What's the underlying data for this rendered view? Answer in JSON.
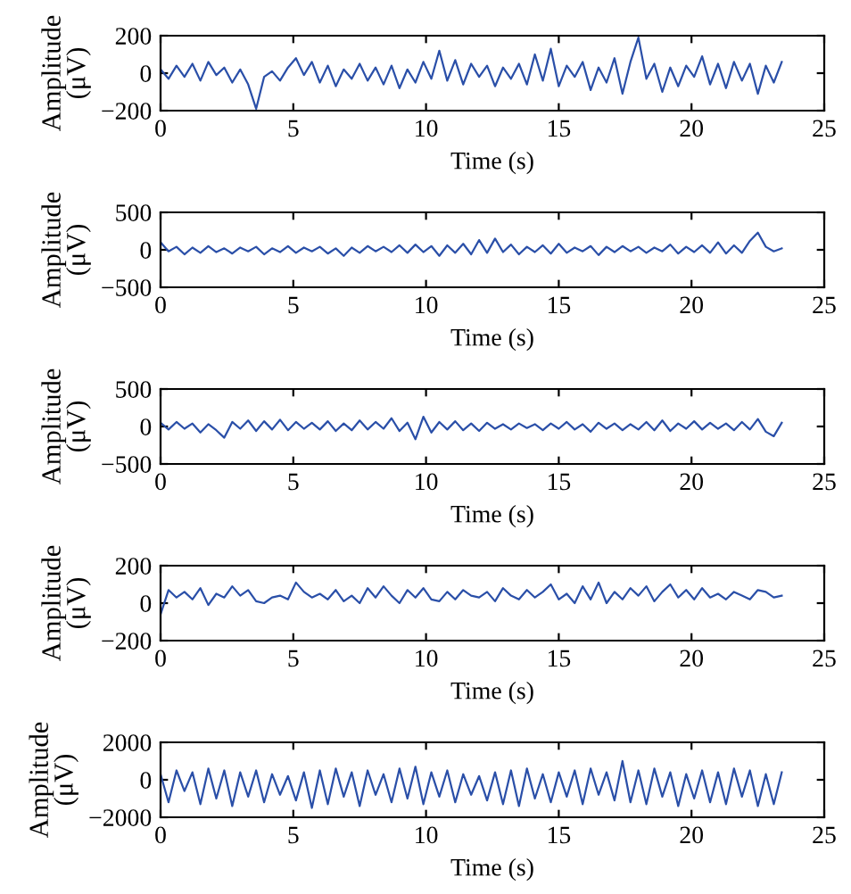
{
  "chart_data": [
    {
      "type": "line",
      "xlabel": "Time (s)",
      "ylabel": "Amplitude\n(μV)",
      "xlim": [
        0,
        25
      ],
      "xticks": [
        0,
        5,
        10,
        15,
        20,
        25
      ],
      "ylim": [
        -200,
        200
      ],
      "yticks": [
        -200,
        0,
        200
      ],
      "x": [
        0,
        0.3,
        0.6,
        0.9,
        1.2,
        1.5,
        1.8,
        2.1,
        2.4,
        2.7,
        3,
        3.3,
        3.6,
        3.9,
        4.2,
        4.5,
        4.8,
        5.1,
        5.4,
        5.7,
        6,
        6.3,
        6.6,
        6.9,
        7.2,
        7.5,
        7.8,
        8.1,
        8.4,
        8.7,
        9,
        9.3,
        9.6,
        9.9,
        10.2,
        10.5,
        10.8,
        11.1,
        11.4,
        11.7,
        12,
        12.3,
        12.6,
        12.9,
        13.2,
        13.5,
        13.8,
        14.1,
        14.4,
        14.7,
        15,
        15.3,
        15.6,
        15.9,
        16.2,
        16.5,
        16.8,
        17.1,
        17.4,
        17.7,
        18,
        18.3,
        18.6,
        18.9,
        19.2,
        19.5,
        19.8,
        20.1,
        20.4,
        20.7,
        21,
        21.3,
        21.6,
        21.9,
        22.2,
        22.5,
        22.8,
        23.1,
        23.4
      ],
      "series": [
        {
          "color": "#2a4fa8",
          "values": [
            20,
            -30,
            40,
            -20,
            50,
            -40,
            60,
            -10,
            30,
            -50,
            20,
            -60,
            -190,
            -20,
            10,
            -40,
            30,
            80,
            -10,
            60,
            -50,
            40,
            -70,
            20,
            -30,
            50,
            -40,
            30,
            -60,
            40,
            -80,
            20,
            -50,
            60,
            -30,
            120,
            -40,
            70,
            -60,
            50,
            -20,
            40,
            -70,
            30,
            -30,
            50,
            -60,
            100,
            -40,
            130,
            -70,
            40,
            -20,
            60,
            -90,
            30,
            -50,
            80,
            -110,
            60,
            190,
            -30,
            50,
            -100,
            30,
            -70,
            40,
            -20,
            90,
            -60,
            50,
            -80,
            60,
            -40,
            50,
            -110,
            40,
            -50,
            60
          ]
        }
      ]
    },
    {
      "type": "line",
      "xlabel": "Time (s)",
      "ylabel": "Amplitude\n(μV)",
      "xlim": [
        0,
        25
      ],
      "xticks": [
        0,
        5,
        10,
        15,
        20,
        25
      ],
      "ylim": [
        -500,
        500
      ],
      "yticks": [
        -500,
        0,
        500
      ],
      "x": [
        0,
        0.3,
        0.6,
        0.9,
        1.2,
        1.5,
        1.8,
        2.1,
        2.4,
        2.7,
        3,
        3.3,
        3.6,
        3.9,
        4.2,
        4.5,
        4.8,
        5.1,
        5.4,
        5.7,
        6,
        6.3,
        6.6,
        6.9,
        7.2,
        7.5,
        7.8,
        8.1,
        8.4,
        8.7,
        9,
        9.3,
        9.6,
        9.9,
        10.2,
        10.5,
        10.8,
        11.1,
        11.4,
        11.7,
        12,
        12.3,
        12.6,
        12.9,
        13.2,
        13.5,
        13.8,
        14.1,
        14.4,
        14.7,
        15,
        15.3,
        15.6,
        15.9,
        16.2,
        16.5,
        16.8,
        17.1,
        17.4,
        17.7,
        18,
        18.3,
        18.6,
        18.9,
        19.2,
        19.5,
        19.8,
        20.1,
        20.4,
        20.7,
        21,
        21.3,
        21.6,
        21.9,
        22.2,
        22.5,
        22.8,
        23.1,
        23.4
      ],
      "series": [
        {
          "color": "#2a4fa8",
          "values": [
            100,
            -20,
            40,
            -60,
            30,
            -40,
            50,
            -30,
            20,
            -50,
            30,
            -20,
            40,
            -60,
            20,
            -30,
            50,
            -40,
            30,
            -20,
            40,
            -50,
            20,
            -80,
            30,
            -40,
            50,
            -20,
            40,
            -30,
            60,
            -40,
            70,
            -30,
            50,
            -80,
            60,
            -40,
            80,
            -60,
            130,
            -40,
            150,
            -30,
            70,
            -60,
            40,
            -30,
            60,
            -50,
            80,
            -40,
            30,
            -20,
            50,
            -70,
            40,
            -30,
            50,
            -20,
            40,
            -40,
            30,
            -20,
            70,
            -50,
            40,
            -30,
            60,
            -40,
            100,
            -50,
            60,
            -40,
            120,
            230,
            40,
            -20,
            20
          ]
        }
      ]
    },
    {
      "type": "line",
      "xlabel": "Time (s)",
      "ylabel": "Amplitude\n(μV)",
      "xlim": [
        0,
        25
      ],
      "xticks": [
        0,
        5,
        10,
        15,
        20,
        25
      ],
      "ylim": [
        -500,
        500
      ],
      "yticks": [
        -500,
        0,
        500
      ],
      "x": [
        0,
        0.3,
        0.6,
        0.9,
        1.2,
        1.5,
        1.8,
        2.1,
        2.4,
        2.7,
        3,
        3.3,
        3.6,
        3.9,
        4.2,
        4.5,
        4.8,
        5.1,
        5.4,
        5.7,
        6,
        6.3,
        6.6,
        6.9,
        7.2,
        7.5,
        7.8,
        8.1,
        8.4,
        8.7,
        9,
        9.3,
        9.6,
        9.9,
        10.2,
        10.5,
        10.8,
        11.1,
        11.4,
        11.7,
        12,
        12.3,
        12.6,
        12.9,
        13.2,
        13.5,
        13.8,
        14.1,
        14.4,
        14.7,
        15,
        15.3,
        15.6,
        15.9,
        16.2,
        16.5,
        16.8,
        17.1,
        17.4,
        17.7,
        18,
        18.3,
        18.6,
        18.9,
        19.2,
        19.5,
        19.8,
        20.1,
        20.4,
        20.7,
        21,
        21.3,
        21.6,
        21.9,
        22.2,
        22.5,
        22.8,
        23.1,
        23.4
      ],
      "series": [
        {
          "color": "#2a4fa8",
          "values": [
            50,
            -40,
            60,
            -30,
            40,
            -80,
            30,
            -50,
            -150,
            60,
            -30,
            80,
            -60,
            70,
            -40,
            90,
            -50,
            60,
            -30,
            50,
            -40,
            70,
            -60,
            40,
            -50,
            80,
            -40,
            60,
            -30,
            110,
            -60,
            50,
            -170,
            130,
            -80,
            60,
            -40,
            70,
            -50,
            40,
            -60,
            50,
            -30,
            30,
            -40,
            40,
            -20,
            30,
            -50,
            40,
            -30,
            60,
            -40,
            30,
            -70,
            50,
            -30,
            40,
            -50,
            30,
            -40,
            60,
            -50,
            80,
            -60,
            40,
            -30,
            70,
            -40,
            50,
            -30,
            40,
            -50,
            60,
            -40,
            100,
            -70,
            -130,
            50
          ]
        }
      ]
    },
    {
      "type": "line",
      "xlabel": "Time (s)",
      "ylabel": "Amplitude\n(μV)",
      "xlim": [
        0,
        25
      ],
      "xticks": [
        0,
        5,
        10,
        15,
        20,
        25
      ],
      "ylim": [
        -200,
        200
      ],
      "yticks": [
        -200,
        0,
        200
      ],
      "x": [
        0,
        0.3,
        0.6,
        0.9,
        1.2,
        1.5,
        1.8,
        2.1,
        2.4,
        2.7,
        3,
        3.3,
        3.6,
        3.9,
        4.2,
        4.5,
        4.8,
        5.1,
        5.4,
        5.7,
        6,
        6.3,
        6.6,
        6.9,
        7.2,
        7.5,
        7.8,
        8.1,
        8.4,
        8.7,
        9,
        9.3,
        9.6,
        9.9,
        10.2,
        10.5,
        10.8,
        11.1,
        11.4,
        11.7,
        12,
        12.3,
        12.6,
        12.9,
        13.2,
        13.5,
        13.8,
        14.1,
        14.4,
        14.7,
        15,
        15.3,
        15.6,
        15.9,
        16.2,
        16.5,
        16.8,
        17.1,
        17.4,
        17.7,
        18,
        18.3,
        18.6,
        18.9,
        19.2,
        19.5,
        19.8,
        20.1,
        20.4,
        20.7,
        21,
        21.3,
        21.6,
        21.9,
        22.2,
        22.5,
        22.8,
        23.1,
        23.4
      ],
      "series": [
        {
          "color": "#2a4fa8",
          "values": [
            -60,
            70,
            30,
            60,
            20,
            80,
            -10,
            50,
            30,
            90,
            40,
            70,
            10,
            0,
            30,
            40,
            20,
            110,
            60,
            30,
            50,
            20,
            70,
            10,
            40,
            0,
            80,
            30,
            90,
            40,
            0,
            70,
            30,
            80,
            20,
            10,
            60,
            20,
            70,
            40,
            30,
            60,
            10,
            80,
            40,
            20,
            70,
            30,
            60,
            100,
            20,
            50,
            0,
            90,
            20,
            110,
            0,
            60,
            20,
            80,
            40,
            90,
            10,
            60,
            100,
            30,
            70,
            20,
            80,
            30,
            50,
            20,
            60,
            40,
            20,
            70,
            60,
            30,
            40
          ]
        }
      ]
    },
    {
      "type": "line",
      "xlabel": "Time (s)",
      "ylabel": "Amplitude\n(μV)",
      "xlim": [
        0,
        25
      ],
      "xticks": [
        0,
        5,
        10,
        15,
        20,
        25
      ],
      "ylim": [
        -2000,
        2000
      ],
      "yticks": [
        -2000,
        0,
        2000
      ],
      "x": [
        0,
        0.3,
        0.6,
        0.9,
        1.2,
        1.5,
        1.8,
        2.1,
        2.4,
        2.7,
        3,
        3.3,
        3.6,
        3.9,
        4.2,
        4.5,
        4.8,
        5.1,
        5.4,
        5.7,
        6,
        6.3,
        6.6,
        6.9,
        7.2,
        7.5,
        7.8,
        8.1,
        8.4,
        8.7,
        9,
        9.3,
        9.6,
        9.9,
        10.2,
        10.5,
        10.8,
        11.1,
        11.4,
        11.7,
        12,
        12.3,
        12.6,
        12.9,
        13.2,
        13.5,
        13.8,
        14.1,
        14.4,
        14.7,
        15,
        15.3,
        15.6,
        15.9,
        16.2,
        16.5,
        16.8,
        17.1,
        17.4,
        17.7,
        18,
        18.3,
        18.6,
        18.9,
        19.2,
        19.5,
        19.8,
        20.1,
        20.4,
        20.7,
        21,
        21.3,
        21.6,
        21.9,
        22.2,
        22.5,
        22.8,
        23.1,
        23.4
      ],
      "series": [
        {
          "color": "#2a4fa8",
          "values": [
            300,
            -1200,
            500,
            -600,
            400,
            -1300,
            600,
            -1000,
            500,
            -1400,
            400,
            -900,
            500,
            -1200,
            300,
            -800,
            200,
            -1100,
            400,
            -1500,
            500,
            -1300,
            600,
            -900,
            400,
            -1400,
            500,
            -800,
            300,
            -1200,
            600,
            -1000,
            700,
            -1300,
            400,
            -900,
            500,
            -1200,
            300,
            -800,
            200,
            -1100,
            400,
            -1300,
            500,
            -1400,
            600,
            -1000,
            300,
            -1200,
            400,
            -900,
            500,
            -1300,
            600,
            -800,
            400,
            -1100,
            1000,
            -1200,
            500,
            -1300,
            600,
            -900,
            400,
            -1400,
            300,
            -1000,
            500,
            -1200,
            400,
            -1300,
            600,
            -900,
            500,
            -1400,
            300,
            -1300,
            400
          ]
        }
      ]
    }
  ]
}
